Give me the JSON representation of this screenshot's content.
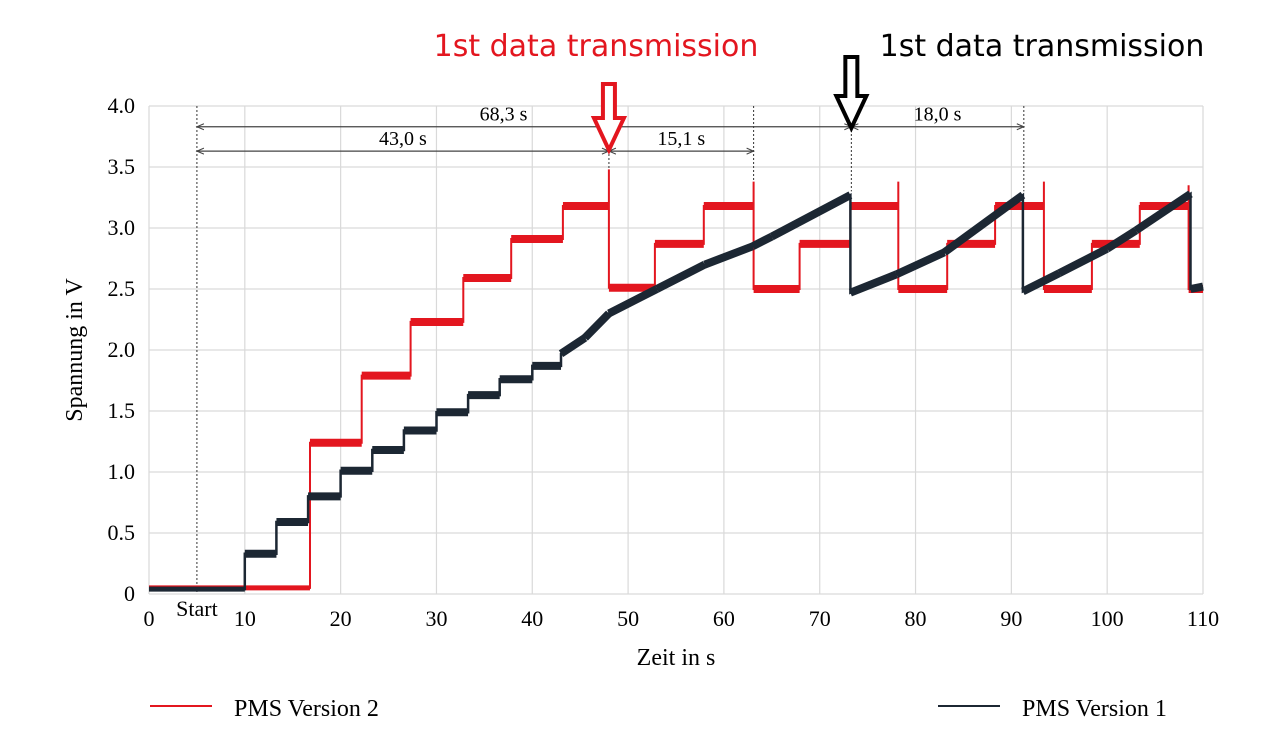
{
  "chart_data": {
    "type": "line",
    "xlabel": "Zeit in s",
    "ylabel": "Spannung in V",
    "xlim": [
      0,
      110
    ],
    "ylim": [
      0,
      4.0
    ],
    "grid": true,
    "x_ticks": [
      "0",
      "10",
      "20",
      "30",
      "40",
      "50",
      "60",
      "70",
      "80",
      "90",
      "100",
      "110"
    ],
    "y_ticks": [
      "0",
      "0.5",
      "1.0",
      "1.5",
      "2.0",
      "2.5",
      "3.0",
      "3.5",
      "4.0"
    ],
    "legend_placement": "bottom",
    "series": [
      {
        "name": "PMS Version 2",
        "color": "#e3161f",
        "points": [
          [
            0,
            0.05
          ],
          [
            16.8,
            0.05
          ],
          [
            16.8,
            1.24
          ],
          [
            22.2,
            1.24
          ],
          [
            22.2,
            1.79
          ],
          [
            27.3,
            1.79
          ],
          [
            27.3,
            2.23
          ],
          [
            32.8,
            2.23
          ],
          [
            32.8,
            2.59
          ],
          [
            37.8,
            2.59
          ],
          [
            37.8,
            2.91
          ],
          [
            43.2,
            2.91
          ],
          [
            43.2,
            3.18
          ],
          [
            48.0,
            3.18
          ],
          [
            48.0,
            3.48
          ],
          [
            48.0,
            2.51
          ],
          [
            52.8,
            2.51
          ],
          [
            52.8,
            2.87
          ],
          [
            57.9,
            2.87
          ],
          [
            57.9,
            3.18
          ],
          [
            63.1,
            3.18
          ],
          [
            63.1,
            3.38
          ],
          [
            63.1,
            2.5
          ],
          [
            67.9,
            2.5
          ],
          [
            67.9,
            2.87
          ],
          [
            73.2,
            2.87
          ],
          [
            73.2,
            3.18
          ],
          [
            78.2,
            3.18
          ],
          [
            78.2,
            3.38
          ],
          [
            78.2,
            2.5
          ],
          [
            83.3,
            2.5
          ],
          [
            83.3,
            2.87
          ],
          [
            88.3,
            2.87
          ],
          [
            88.3,
            3.18
          ],
          [
            93.4,
            3.18
          ],
          [
            93.4,
            3.38
          ],
          [
            93.4,
            2.5
          ],
          [
            98.4,
            2.5
          ],
          [
            98.4,
            2.87
          ],
          [
            103.4,
            2.87
          ],
          [
            103.4,
            3.18
          ],
          [
            108.5,
            3.18
          ],
          [
            108.5,
            3.35
          ],
          [
            108.5,
            2.5
          ],
          [
            110,
            2.5
          ]
        ]
      },
      {
        "name": "PMS Version 1",
        "color": "#1c2733",
        "points": [
          [
            0,
            0.04
          ],
          [
            10,
            0.04
          ],
          [
            10,
            0.33
          ],
          [
            13.3,
            0.33
          ],
          [
            13.3,
            0.59
          ],
          [
            16.6,
            0.59
          ],
          [
            16.6,
            0.8
          ],
          [
            20,
            0.8
          ],
          [
            20,
            1.01
          ],
          [
            23.3,
            1.01
          ],
          [
            23.3,
            1.18
          ],
          [
            26.6,
            1.18
          ],
          [
            26.6,
            1.34
          ],
          [
            30,
            1.34
          ],
          [
            30,
            1.49
          ],
          [
            33.3,
            1.49
          ],
          [
            33.3,
            1.63
          ],
          [
            36.6,
            1.63
          ],
          [
            36.6,
            1.76
          ],
          [
            40,
            1.76
          ],
          [
            40,
            1.87
          ],
          [
            43,
            1.87
          ],
          [
            43,
            1.97
          ],
          [
            45.5,
            2.1
          ],
          [
            48,
            2.3
          ],
          [
            53,
            2.5
          ],
          [
            58,
            2.7
          ],
          [
            63,
            2.85
          ],
          [
            65,
            2.93
          ],
          [
            73.2,
            3.27
          ],
          [
            73.2,
            2.47
          ],
          [
            78,
            2.62
          ],
          [
            83,
            2.8
          ],
          [
            91.2,
            3.27
          ],
          [
            91.2,
            2.48
          ],
          [
            95,
            2.63
          ],
          [
            100,
            2.83
          ],
          [
            103,
            2.98
          ],
          [
            108.7,
            3.28
          ],
          [
            108.7,
            2.5
          ],
          [
            110,
            2.52
          ]
        ]
      }
    ],
    "markers": [
      {
        "label": "Start",
        "x": 5.0
      },
      {
        "x": 48.0
      },
      {
        "x": 63.1
      },
      {
        "x": 73.3
      },
      {
        "x": 91.3
      }
    ],
    "dimensions": [
      {
        "label": "68,3 s",
        "from": 5.0,
        "to": 73.3,
        "y": 3.83
      },
      {
        "label": "43,0 s",
        "from": 5.0,
        "to": 48.0,
        "y": 3.63
      },
      {
        "label": "15,1 s",
        "from": 48.0,
        "to": 63.1,
        "y": 3.63
      },
      {
        "label": "18,0 s",
        "from": 73.3,
        "to": 91.3,
        "y": 3.83
      }
    ],
    "annotations": [
      {
        "label": "1st data transmission",
        "x": 48.0,
        "color": "#e3161f"
      },
      {
        "label": "1st data transmission",
        "x": 73.3,
        "color": "#000000"
      }
    ]
  }
}
